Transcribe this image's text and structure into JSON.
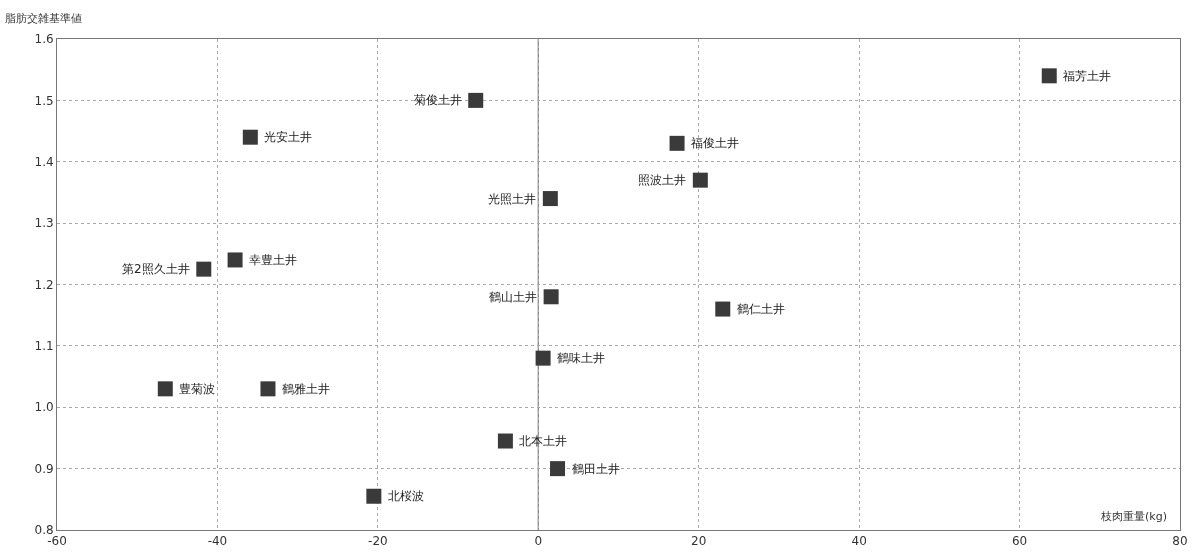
{
  "chart_data": {
    "type": "scatter",
    "xlabel": "枝肉重量(kg)",
    "ylabel": "脂肪交雑基準値",
    "marker": "square",
    "grid": true,
    "xlim": [
      -60,
      80
    ],
    "xticks": [
      -60,
      -40,
      -20,
      0,
      20,
      40,
      60,
      80
    ],
    "ylim": [
      0.8,
      1.6
    ],
    "yticks": [
      {
        "value": 0.8,
        "label": "0.8"
      },
      {
        "value": 0.9,
        "label": "0.9"
      },
      {
        "value": 1.0,
        "label": "1.0"
      },
      {
        "value": 1.1,
        "label": "1.1"
      },
      {
        "value": 1.2,
        "label": "1.2"
      },
      {
        "value": 1.3,
        "label": "1.3"
      },
      {
        "value": 1.4,
        "label": "1.4"
      },
      {
        "value": 1.5,
        "label": "1.5"
      },
      {
        "value": 1.6,
        "label": "1.6"
      }
    ],
    "ref_lines": [
      {
        "axis": "x",
        "value": 0,
        "color": "#888888",
        "line_style": "solid"
      }
    ],
    "series": [
      {
        "color": "#3a3a3a",
        "x": [
          63.7,
          -7.8,
          -35.9,
          17.3,
          20.2,
          1.5,
          -37.8,
          -41.7,
          1.6,
          23,
          0.6,
          -46.5,
          -33.7,
          -4.1,
          2.4,
          -20.5
        ],
        "values": [
          1.54,
          1.5,
          1.44,
          1.43,
          1.37,
          1.34,
          1.24,
          1.225,
          1.18,
          1.16,
          1.08,
          1.03,
          1.03,
          0.945,
          0.9,
          0.855
        ]
      }
    ],
    "annotations": [
      {
        "text": "福芳土井",
        "x": 63.7,
        "y": 1.54
      },
      {
        "text": "菊俊土井",
        "x": -7.8,
        "y": 1.5
      },
      {
        "text": "光安土井",
        "x": -35.9,
        "y": 1.44
      },
      {
        "text": "福俊土井",
        "x": 17.3,
        "y": 1.43
      },
      {
        "text": "照波土井",
        "x": 20.2,
        "y": 1.37
      },
      {
        "text": "光照土井",
        "x": 1.5,
        "y": 1.34
      },
      {
        "text": "幸豊土井",
        "x": -37.8,
        "y": 1.24
      },
      {
        "text": "第2照久土井",
        "x": -41.7,
        "y": 1.225
      },
      {
        "text": "鶴山土井",
        "x": 1.6,
        "y": 1.18
      },
      {
        "text": "鶴仁土井",
        "x": 23,
        "y": 1.16
      },
      {
        "text": "鶴味土井",
        "x": 0.6,
        "y": 1.08
      },
      {
        "text": "豊菊波",
        "x": -46.5,
        "y": 1.03
      },
      {
        "text": "鶴雅土井",
        "x": -33.7,
        "y": 1.03
      },
      {
        "text": "北本土井",
        "x": -4.1,
        "y": 0.945
      },
      {
        "text": "鶴田土井",
        "x": 2.4,
        "y": 0.9
      },
      {
        "text": "北桜波",
        "x": -20.5,
        "y": 0.855
      }
    ]
  }
}
